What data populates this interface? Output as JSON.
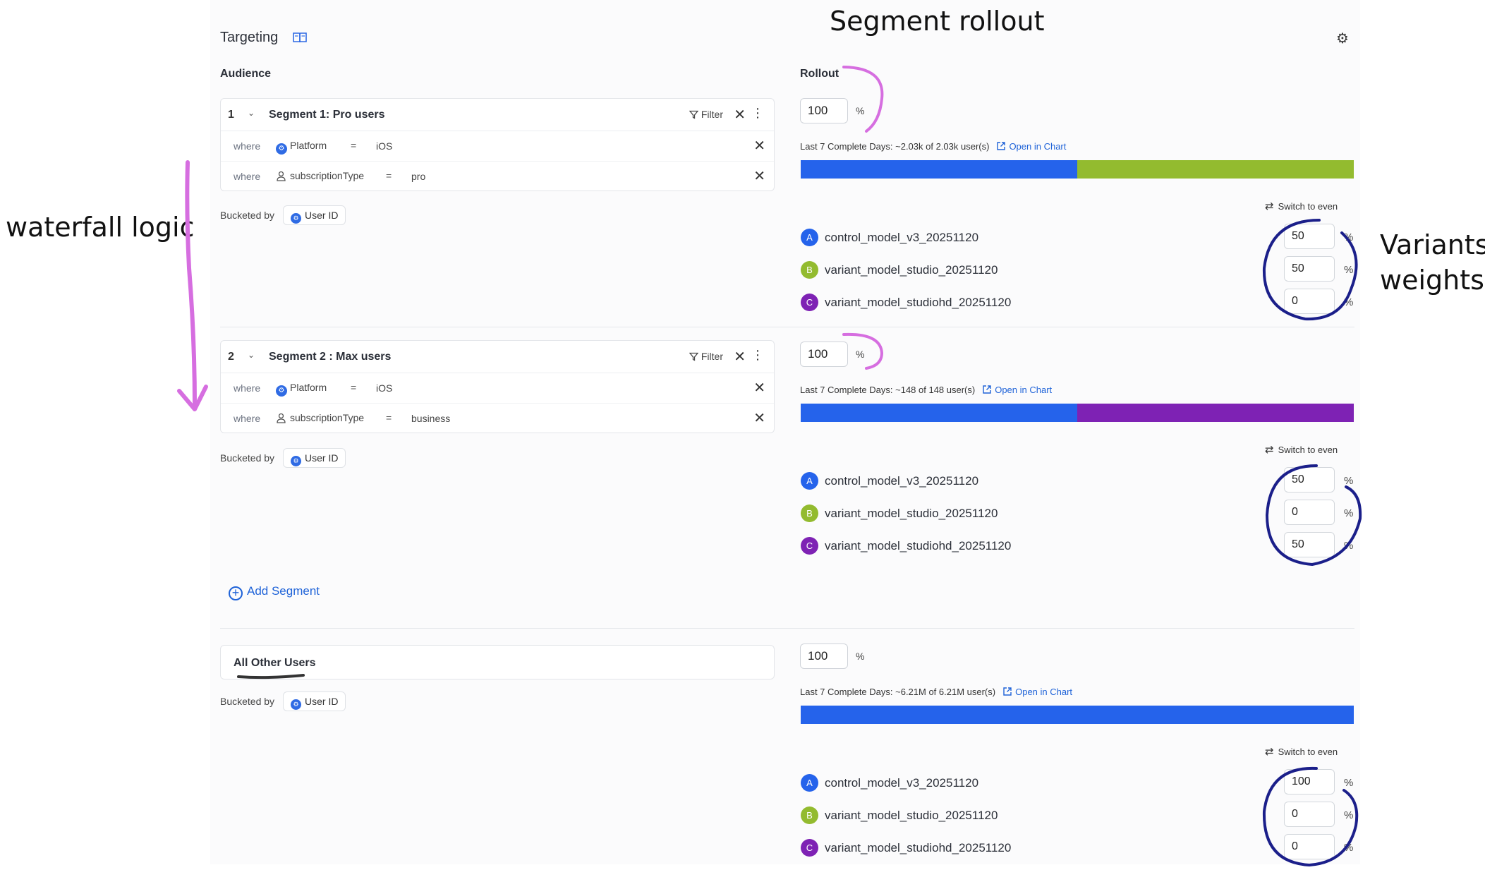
{
  "header": {
    "title": "Targeting",
    "doc_icon": "book-icon",
    "settings_icon": "gear-icon"
  },
  "sections": {
    "audience": "Audience",
    "rollout": "Rollout"
  },
  "labels": {
    "where": "where",
    "bucketed_by": "Bucketed by",
    "user_id": "User ID",
    "filter": "Filter",
    "percent": "%",
    "switch_to_even": "Switch to even",
    "open_in_chart": "Open in Chart",
    "add_segment": "Add Segment",
    "all_other_users": "All Other Users"
  },
  "segments": [
    {
      "number": "1",
      "name": "Segment 1: Pro users",
      "conditions": [
        {
          "property": "Platform",
          "property_icon": "platform-icon",
          "operator": "=",
          "value": "iOS"
        },
        {
          "property": "subscriptionType",
          "property_icon": "person-icon",
          "operator": "=",
          "value": "pro"
        }
      ],
      "rollout": "100",
      "stats": "Last 7 Complete Days: ~2.03k of 2.03k user(s)",
      "bar": [
        {
          "color": "#2563eb",
          "fraction": 0.5
        },
        {
          "color": "#93bb2f",
          "fraction": 0.5
        }
      ],
      "variants": [
        {
          "letter": "A",
          "color": "#2563eb",
          "name": "control_model_v3_20251120",
          "weight": "50"
        },
        {
          "letter": "B",
          "color": "#93bb2f",
          "name": "variant_model_studio_20251120",
          "weight": "50"
        },
        {
          "letter": "C",
          "color": "#7e22b4",
          "name": "variant_model_studiohd_20251120",
          "weight": "0"
        }
      ]
    },
    {
      "number": "2",
      "name": "Segment 2 : Max users",
      "conditions": [
        {
          "property": "Platform",
          "property_icon": "platform-icon",
          "operator": "=",
          "value": "iOS"
        },
        {
          "property": "subscriptionType",
          "property_icon": "person-icon",
          "operator": "=",
          "value": "business"
        }
      ],
      "rollout": "100",
      "stats": "Last 7 Complete Days: ~148 of 148 user(s)",
      "bar": [
        {
          "color": "#2563eb",
          "fraction": 0.5
        },
        {
          "color": "#7e22b4",
          "fraction": 0.5
        }
      ],
      "variants": [
        {
          "letter": "A",
          "color": "#2563eb",
          "name": "control_model_v3_20251120",
          "weight": "50"
        },
        {
          "letter": "B",
          "color": "#93bb2f",
          "name": "variant_model_studio_20251120",
          "weight": "0"
        },
        {
          "letter": "C",
          "color": "#7e22b4",
          "name": "variant_model_studiohd_20251120",
          "weight": "50"
        }
      ]
    }
  ],
  "all_other_users": {
    "rollout": "100",
    "stats": "Last 7 Complete Days: ~6.21M of 6.21M user(s)",
    "bar": [
      {
        "color": "#2563eb",
        "fraction": 1.0
      }
    ],
    "variants": [
      {
        "letter": "A",
        "color": "#2563eb",
        "name": "control_model_v3_20251120",
        "weight": "100"
      },
      {
        "letter": "B",
        "color": "#93bb2f",
        "name": "variant_model_studio_20251120",
        "weight": "0"
      },
      {
        "letter": "C",
        "color": "#7e22b4",
        "name": "variant_model_studiohd_20251120",
        "weight": "0"
      }
    ]
  },
  "annotations": {
    "segment_rollout": "Segment rollout",
    "waterfall_logic": "waterfall logic",
    "variants_weights_line1": "Variants",
    "variants_weights_line2": "weights",
    "pink_color": "#d66ee0",
    "navy_color": "#1b1f8a"
  }
}
